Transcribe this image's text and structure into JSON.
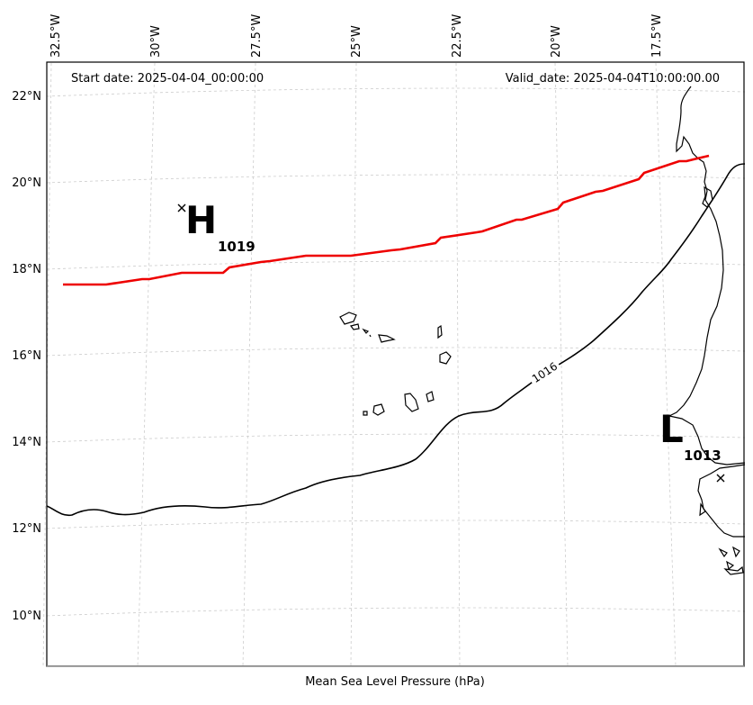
{
  "header": {
    "start_date": "Start date: 2025-04-04_00:00:00",
    "valid_date": "Valid_date: 2025-04-04T10:00:00.00"
  },
  "caption": "Mean Sea Level Pressure (hPa)",
  "lon_ticks": [
    "32.5°W",
    "30°W",
    "27.5°W",
    "25°W",
    "22.5°W",
    "20°W",
    "17.5°W"
  ],
  "lat_ticks": [
    "22°N",
    "20°N",
    "18°N",
    "16°N",
    "14°N",
    "12°N",
    "10°N"
  ],
  "high_center": {
    "letter": "H",
    "value": "1019",
    "marker": "x-marker-icon"
  },
  "low_center": {
    "letter": "L",
    "value": "1013",
    "marker": "x-marker-icon"
  },
  "contour": {
    "value": "1016",
    "color": "#000000"
  },
  "track": {
    "color": "#ee0000"
  }
}
